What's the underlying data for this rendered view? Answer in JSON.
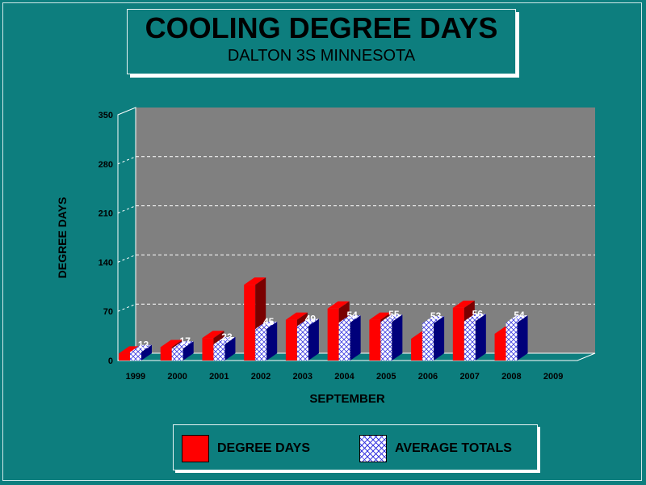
{
  "title": "COOLING DEGREE DAYS",
  "subtitle": "DALTON 3S MINNESOTA",
  "chart_data": {
    "type": "bar",
    "title": "COOLING DEGREE DAYS",
    "subtitle": "DALTON 3S MINNESOTA",
    "xlabel": "SEPTEMBER",
    "ylabel": "DEGREE DAYS",
    "ylim": [
      0,
      350
    ],
    "yticks": [
      0,
      70,
      140,
      210,
      280,
      350
    ],
    "grid": true,
    "legend_position": "bottom",
    "categories": [
      "1999",
      "2000",
      "2001",
      "2002",
      "2003",
      "2004",
      "2005",
      "2006",
      "2007",
      "2008",
      "2009"
    ],
    "series": [
      {
        "name": "DEGREE DAYS",
        "values": [
          10,
          19,
          32,
          108,
          58,
          74,
          58,
          31,
          75,
          38,
          null
        ],
        "color": "#ff0000",
        "side_color": "#7a0000"
      },
      {
        "name": "AVERAGE TOTALS",
        "values": [
          12,
          17,
          23,
          45,
          49,
          54,
          55,
          53,
          56,
          54,
          null
        ],
        "labels": [
          "12",
          "17",
          "23",
          "45",
          "49",
          "54",
          "55",
          "53",
          "56",
          "54",
          ""
        ],
        "color": "#ffffff",
        "pattern": "crosshatch-blue",
        "side_color": "#00007a"
      }
    ],
    "colors": {
      "background": "#0d7e7e",
      "plot_wall": "#808080",
      "gridline": "#ffffff"
    }
  }
}
